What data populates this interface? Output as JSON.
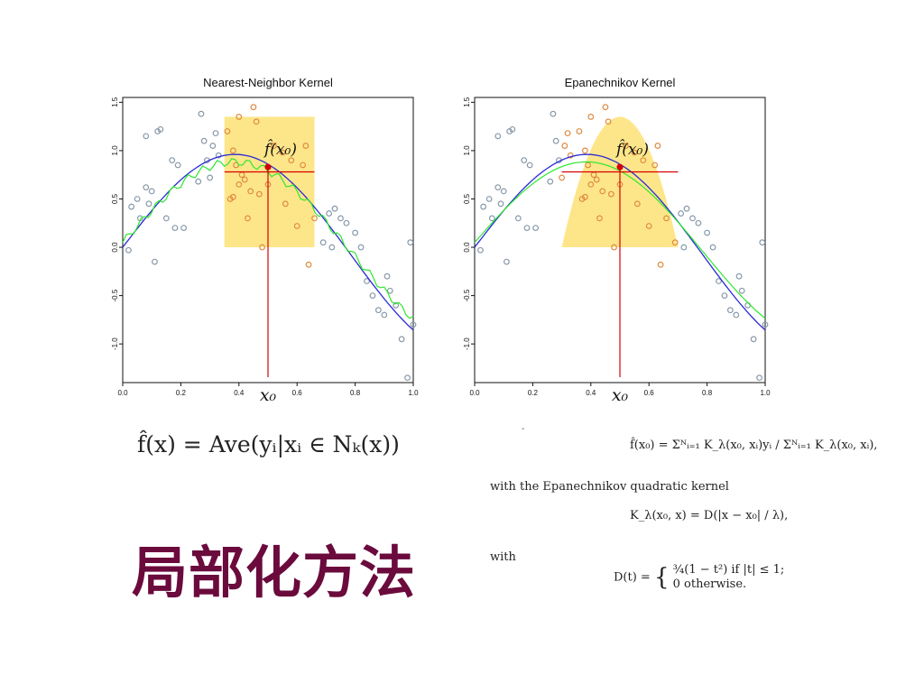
{
  "heading": "局部化方法",
  "dash": "-",
  "equations": {
    "nn": "f̂(x) = Ave(yᵢ|xᵢ ∈ Nₖ(x))",
    "nw": "f̂(x₀) = Σᴺᵢ₌₁ K_λ(x₀, xᵢ)yᵢ / Σᴺᵢ₌₁ K_λ(x₀, xᵢ),",
    "with_kernel": "with the Epanechnikov quadratic kernel",
    "kernel": "K_λ(x₀, x) = D(|x − x₀| / λ),",
    "with": "with",
    "d_case1": "¾(1 − t²)   if |t| ≤ 1;",
    "d_case2": "0   otherwise.",
    "d_lhs": "D(t) ="
  },
  "chart_data": [
    {
      "type": "scatter",
      "title": "Nearest-Neighbor Kernel",
      "xlim": [
        0.0,
        1.0
      ],
      "ylim": [
        -1.4,
        1.55
      ],
      "x_ticks": [
        "0.0",
        "0.2",
        "0.4",
        "0.6",
        "0.8",
        "1.0"
      ],
      "y_ticks": [
        "-1.0",
        "-0.5",
        "0.0",
        "0.5",
        "1.0",
        "1.5"
      ],
      "x0_label": "x₀",
      "fhat_label": "f̂(x₀)",
      "x0": 0.5,
      "fhat_x0": 0.83,
      "window": [
        0.35,
        0.66
      ],
      "window_shape": "rectangle",
      "colors": {
        "points": "#8899aa",
        "window_points": "#e08a40",
        "true": "#2a2ad6",
        "fit": "#2ee82e",
        "marker": "#d60000",
        "window": "#fde68a"
      },
      "grid": false
    },
    {
      "type": "scatter",
      "title": "Epanechnikov Kernel",
      "xlim": [
        0.0,
        1.0
      ],
      "ylim": [
        -1.4,
        1.55
      ],
      "x_ticks": [
        "0.0",
        "0.2",
        "0.4",
        "0.6",
        "0.8",
        "1.0"
      ],
      "y_ticks": [
        "-1.0",
        "-0.5",
        "0.0",
        "0.5",
        "1.0",
        "1.5"
      ],
      "x0_label": "x₀",
      "fhat_label": "f̂(x₀)",
      "x0": 0.5,
      "fhat_x0": 0.83,
      "window": [
        0.3,
        0.7
      ],
      "window_shape": "parabola",
      "colors": {
        "points": "#8899aa",
        "window_points": "#e08a40",
        "true": "#2a2ad6",
        "fit": "#2ee82e",
        "marker": "#d60000",
        "window": "#fde68a"
      },
      "grid": false
    }
  ],
  "points": {
    "x": [
      0.02,
      0.03,
      0.05,
      0.06,
      0.08,
      0.08,
      0.09,
      0.1,
      0.11,
      0.12,
      0.13,
      0.15,
      0.17,
      0.18,
      0.19,
      0.21,
      0.26,
      0.27,
      0.28,
      0.29,
      0.3,
      0.31,
      0.32,
      0.33,
      0.36,
      0.37,
      0.38,
      0.38,
      0.39,
      0.4,
      0.4,
      0.41,
      0.42,
      0.43,
      0.44,
      0.45,
      0.46,
      0.47,
      0.48,
      0.5,
      0.52,
      0.55,
      0.56,
      0.58,
      0.6,
      0.62,
      0.63,
      0.64,
      0.66,
      0.69,
      0.71,
      0.72,
      0.73,
      0.75,
      0.77,
      0.8,
      0.82,
      0.84,
      0.86,
      0.88,
      0.9,
      0.91,
      0.92,
      0.94,
      0.96,
      0.98,
      0.99,
      1.0
    ],
    "y": [
      -0.03,
      0.42,
      0.5,
      0.3,
      0.62,
      1.15,
      0.45,
      0.58,
      -0.15,
      1.2,
      1.22,
      0.3,
      0.9,
      0.2,
      0.85,
      0.2,
      0.68,
      1.38,
      1.1,
      0.9,
      0.72,
      1.05,
      1.18,
      0.95,
      1.2,
      0.5,
      0.52,
      1.0,
      0.85,
      0.65,
      1.35,
      0.75,
      0.7,
      0.3,
      0.58,
      1.45,
      1.3,
      0.55,
      0.0,
      0.65,
      1.05,
      0.98,
      0.45,
      0.9,
      0.22,
      0.85,
      1.05,
      -0.18,
      0.3,
      0.05,
      0.35,
      0.0,
      0.4,
      0.3,
      0.25,
      0.15,
      0.0,
      -0.35,
      -0.5,
      -0.65,
      -0.7,
      -0.3,
      -0.45,
      -0.6,
      -0.95,
      -1.35,
      0.05,
      -0.8
    ]
  }
}
